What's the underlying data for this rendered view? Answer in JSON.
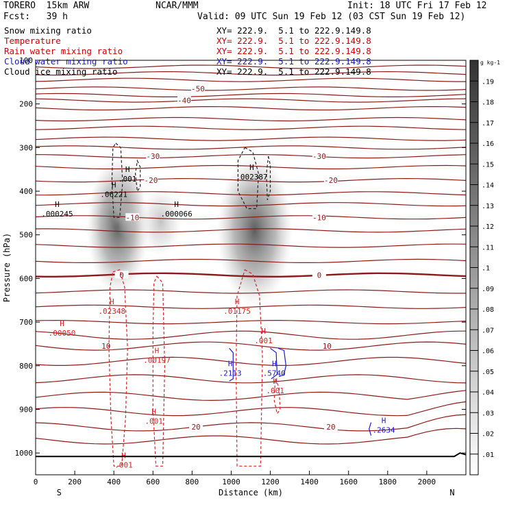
{
  "header": {
    "model": "TORERO  15km ARW",
    "center": "NCAR/MMM",
    "init": "Init: 18 UTC Fri 17 Feb 12",
    "fcst": "Fcst:   39 h",
    "valid": "Valid: 09 UTC Sun 19 Feb 12 (03 CST Sun 19 Feb 12)"
  },
  "legend": [
    {
      "name": "Snow mixing ratio",
      "xy": "XY= 222.9.  5.1 to 222.9.149.8",
      "color": "#000000"
    },
    {
      "name": "Temperature",
      "xy": "XY= 222.9.  5.1 to 222.9.149.8",
      "color": "#cc0000"
    },
    {
      "name": "Rain water mixing ratio",
      "xy": "XY= 222.9.  5.1 to 222.9.149.8",
      "color": "#cc0000"
    },
    {
      "name": "Cloud water mixing ratio",
      "xy": "XY= 222.9.  5.1 to 222.9.149.8",
      "color": "#1a1acc"
    },
    {
      "name": "Cloud ice mixing ratio",
      "xy": "XY= 222.9.  5.1 to 222.9.149.8",
      "color": "#000000"
    }
  ],
  "chart_data": {
    "type": "cross-section",
    "xlabel": "Distance (km)",
    "ylabel": "Pressure (hPa)",
    "xlim": [
      0,
      2200
    ],
    "ylim": [
      1050,
      100
    ],
    "x_ticks": [
      0,
      200,
      400,
      600,
      800,
      1000,
      1200,
      1400,
      1600,
      1800,
      2000
    ],
    "y_ticks": [
      100,
      200,
      300,
      400,
      500,
      600,
      700,
      800,
      900,
      1000
    ],
    "y_tick_labels": [
      "100",
      "200",
      "300",
      "400",
      "500",
      "600",
      "700",
      "800",
      "900",
      "1000"
    ],
    "left_end": "S",
    "right_end": "N",
    "colorbar": {
      "unit": "g kg-1",
      "labels": [
        ".01",
        ".02",
        ".03",
        ".04",
        ".05",
        ".06",
        ".07",
        ".08",
        ".09",
        ".1",
        ".11",
        ".12",
        ".13",
        ".14",
        ".15",
        ".16",
        ".17",
        ".18",
        ".19"
      ]
    },
    "temperature_isotherms": [
      {
        "label": "-50",
        "p": 165,
        "lx": 830
      },
      {
        "label": "-40",
        "p": 192,
        "lx": 760
      },
      {
        "label": "-30",
        "p": 320,
        "lx": 600,
        "lx2": 1450
      },
      {
        "label": "-20",
        "p": 375,
        "lx": 590,
        "lx2": 1510
      },
      {
        "label": "-10",
        "p": 460,
        "lx": 495,
        "lx2": 1450
      },
      {
        "label": "0",
        "p": 592,
        "lx": 440,
        "lx2": 1450,
        "freezing": true
      },
      {
        "label": "10",
        "p": 755,
        "lx": 360,
        "lx2": 1490
      },
      {
        "label": "20",
        "p": 940,
        "lx": 820,
        "lx2": 1510
      }
    ],
    "maxima": [
      {
        "series": "Cloud ice mixing ratio",
        "label": ".001",
        "x": 470,
        "p": 375
      },
      {
        "series": "Cloud ice mixing ratio",
        "label": ".06221",
        "x": 400,
        "p": 410
      },
      {
        "series": "Cloud ice mixing ratio",
        "label": ".000245",
        "x": 110,
        "p": 455
      },
      {
        "series": "Cloud ice mixing ratio",
        "label": ".000066",
        "x": 720,
        "p": 455
      },
      {
        "series": "Cloud ice mixing ratio",
        "label": ".002387",
        "x": 1105,
        "p": 370
      },
      {
        "series": "Rain water mixing ratio",
        "label": ".02348",
        "x": 390,
        "p": 678
      },
      {
        "series": "Rain water mixing ratio",
        "label": ".00050",
        "x": 135,
        "p": 728
      },
      {
        "series": "Rain water mixing ratio",
        "label": ".01175",
        "x": 1030,
        "p": 678
      },
      {
        "series": "Rain water mixing ratio",
        "label": ".001",
        "x": 1165,
        "p": 745
      },
      {
        "series": "Rain water mixing ratio",
        "label": ".00197",
        "x": 620,
        "p": 790
      },
      {
        "series": "Rain water mixing ratio",
        "label": ".001",
        "x": 1225,
        "p": 860
      },
      {
        "series": "Rain water mixing ratio",
        "label": ".001",
        "x": 605,
        "p": 930
      },
      {
        "series": "Rain water mixing ratio",
        "label": ".001",
        "x": 450,
        "p": 1030
      },
      {
        "series": "Cloud water mixing ratio",
        "label": ".2113",
        "x": 995,
        "p": 820
      },
      {
        "series": "Cloud water mixing ratio",
        "label": ".5740",
        "x": 1220,
        "p": 820
      },
      {
        "series": "Cloud water mixing ratio",
        "label": ".2634",
        "x": 1780,
        "p": 950
      }
    ]
  }
}
